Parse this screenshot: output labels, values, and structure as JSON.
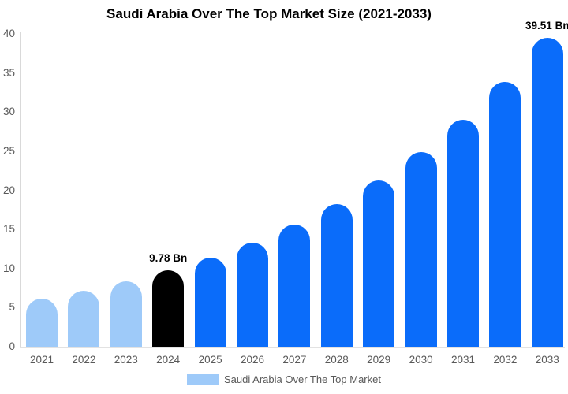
{
  "title": "Saudi Arabia Over The Top Market Size (2021-2033)",
  "legend": {
    "label": "Saudi Arabia Over The Top Market",
    "swatch_color": "#9ECAF9"
  },
  "colors": {
    "historical_bar": "#9ECAF9",
    "highlight_bar": "#000000",
    "forecast_bar": "#0A6CFA",
    "axis_text": "#595959",
    "axis_line": "#D9D9D9",
    "title_text": "#000000",
    "data_label_text": "#000000"
  },
  "chart_data": {
    "type": "bar",
    "title": "Saudi Arabia Over The Top Market Size (2021-2033)",
    "xlabel": "",
    "ylabel": "",
    "categories": [
      "2021",
      "2022",
      "2023",
      "2024",
      "2025",
      "2026",
      "2027",
      "2028",
      "2029",
      "2030",
      "2031",
      "2032",
      "2033"
    ],
    "values": [
      6.1,
      7.2,
      8.4,
      9.78,
      11.4,
      13.3,
      15.6,
      18.2,
      21.3,
      24.9,
      29.0,
      33.9,
      39.51
    ],
    "bar_colors": [
      "#9ECAF9",
      "#9ECAF9",
      "#9ECAF9",
      "#000000",
      "#0A6CFA",
      "#0A6CFA",
      "#0A6CFA",
      "#0A6CFA",
      "#0A6CFA",
      "#0A6CFA",
      "#0A6CFA",
      "#0A6CFA",
      "#0A6CFA"
    ],
    "data_labels": [
      "",
      "",
      "",
      "9.78 Bn",
      "",
      "",
      "",
      "",
      "",
      "",
      "",
      "",
      "39.51 Bn"
    ],
    "ylim": [
      0,
      40
    ],
    "yticks": [
      0,
      5,
      10,
      15,
      20,
      25,
      30,
      35,
      40
    ],
    "grid": false,
    "legend_position": "bottom",
    "legend_entries": [
      "Saudi Arabia Over The Top Market"
    ]
  }
}
